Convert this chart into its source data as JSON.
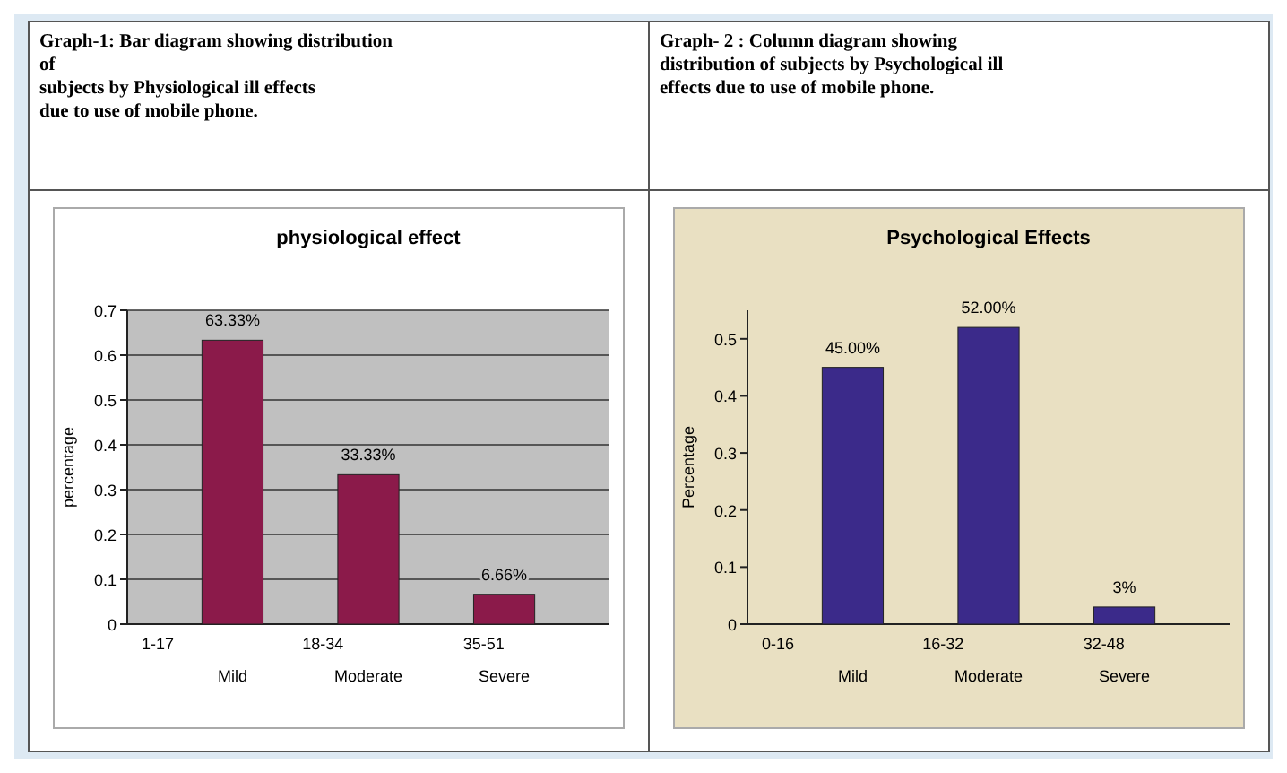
{
  "chart_data": [
    {
      "type": "bar",
      "title": "physiological effect",
      "ylabel": "percentage",
      "categories": [
        "Mild",
        "Moderate",
        "Severe"
      ],
      "values": [
        0.6333,
        0.3333,
        0.0666
      ],
      "value_labels": [
        "63.33%",
        "33.33%",
        "6.66%"
      ],
      "color": "#8b1a4a",
      "ylim": [
        0,
        0.7
      ],
      "yticks": [
        0,
        0.1,
        0.2,
        0.3,
        0.4,
        0.5,
        0.6,
        0.7
      ],
      "grid": "y",
      "annotations": [
        "Graph-1: Bar diagram showing distribution\nof\nsubjects by Physiological ill effects\ndue to use of mobile phone.",
        "1-17",
        "18-34",
        "35-51"
      ]
    },
    {
      "type": "bar",
      "title": "Psychological Effects",
      "ylabel": "Percentage",
      "categories": [
        "Mild",
        "Moderate",
        "Severe"
      ],
      "values": [
        0.45,
        0.52,
        0.03
      ],
      "value_labels": [
        "45.00%",
        "52.00%",
        "3%"
      ],
      "color": "#3b2a8a",
      "ylim": [
        0,
        0.55
      ],
      "yticks": [
        0,
        0.1,
        0.2,
        0.3,
        0.4,
        0.5
      ],
      "annotations": [
        "Graph- 2 : Column diagram showing\ndistribution of subjects by Psychological ill\neffects due to use of mobile phone.",
        "0-16",
        "16-32",
        "32-48"
      ]
    }
  ]
}
